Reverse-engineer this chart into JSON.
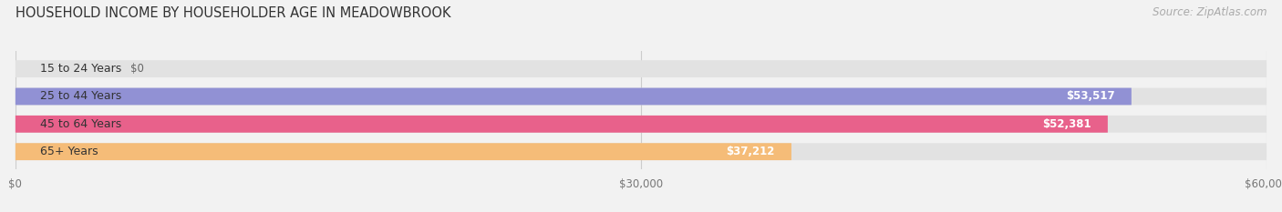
{
  "title": "HOUSEHOLD INCOME BY HOUSEHOLDER AGE IN MEADOWBROOK",
  "source": "Source: ZipAtlas.com",
  "categories": [
    "15 to 24 Years",
    "25 to 44 Years",
    "45 to 64 Years",
    "65+ Years"
  ],
  "values": [
    0,
    53517,
    52381,
    37212
  ],
  "bar_colors": [
    "#7fd8d4",
    "#9191d4",
    "#e8618b",
    "#f5bc78"
  ],
  "bg_color": "#f2f2f2",
  "bar_bg_color": "#e2e2e2",
  "xlim": [
    0,
    60000
  ],
  "xticks": [
    0,
    30000,
    60000
  ],
  "xtick_labels": [
    "$0",
    "$30,000",
    "$60,000"
  ],
  "value_labels": [
    "$0",
    "$53,517",
    "$52,381",
    "$37,212"
  ],
  "title_fontsize": 10.5,
  "source_fontsize": 8.5,
  "label_fontsize": 9,
  "value_fontsize": 8.5,
  "tick_fontsize": 8.5,
  "label_color": "#333333",
  "value_color_inside": "white",
  "value_color_outside": "#666666",
  "source_color": "#aaaaaa",
  "title_color": "#333333",
  "grid_color": "#cccccc"
}
